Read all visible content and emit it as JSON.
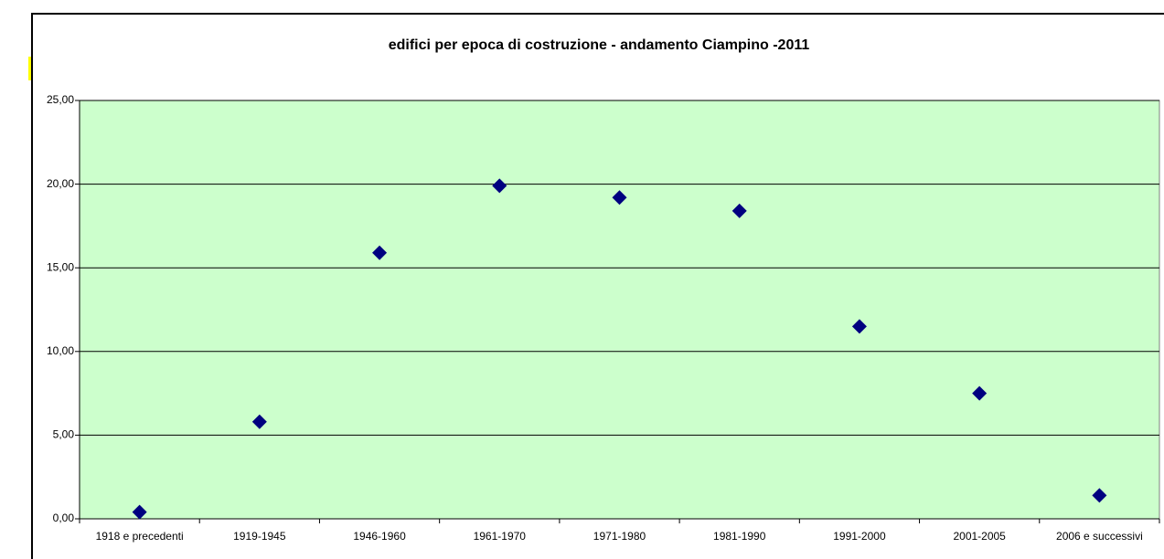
{
  "chart_data": {
    "type": "scatter",
    "title": "edifici per epoca di costruzione - andamento Ciampino -2011",
    "categories": [
      "1918 e precedenti",
      "1919-1945",
      "1946-1960",
      "1961-1970",
      "1971-1980",
      "1981-1990",
      "1991-2000",
      "2001-2005",
      "2006 e successivi"
    ],
    "values": [
      0.4,
      5.8,
      15.9,
      19.9,
      19.2,
      18.4,
      11.5,
      7.5,
      1.4
    ],
    "color": "#000080",
    "marker": "diamond",
    "background": "#ccffcc",
    "grid": true,
    "ylim": [
      0,
      25
    ],
    "yticks": [
      {
        "value": 0,
        "label": "0,00"
      },
      {
        "value": 5,
        "label": "5,00"
      },
      {
        "value": 10,
        "label": "10,00"
      },
      {
        "value": 15,
        "label": "15,00"
      },
      {
        "value": 20,
        "label": "20,00"
      },
      {
        "value": 25,
        "label": "25,00"
      }
    ]
  }
}
